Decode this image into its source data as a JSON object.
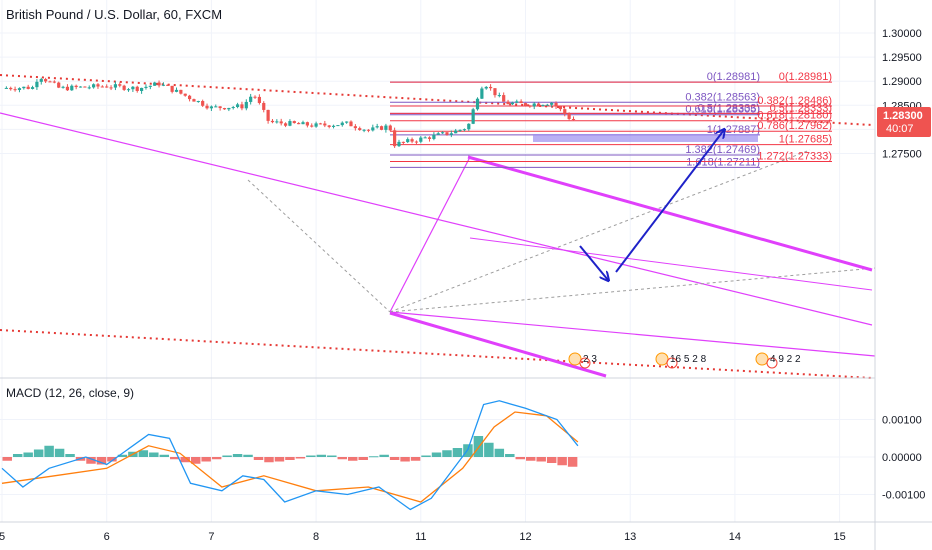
{
  "header": {
    "title": "British Pound / U.S. Dollar, 60, FXCM"
  },
  "macd": {
    "label": "MACD (12, 26, close, 9)"
  },
  "price_scale": {
    "ticks": [
      "1.30000",
      "1.29500",
      "1.29000",
      "1.28500",
      "1.28000",
      "1.27500"
    ],
    "current_price": "1.28300",
    "countdown": "40:07"
  },
  "macd_scale": {
    "ticks": [
      "0.00100",
      "0.00000",
      "-0.00100"
    ]
  },
  "time_axis": {
    "ticks": [
      "5",
      "6",
      "7",
      "8",
      "11",
      "12",
      "13",
      "14",
      "15"
    ]
  },
  "fib_left": [
    {
      "label": "0(1.28981)",
      "price": 1.28981
    },
    {
      "label": "0.382(1.28563)",
      "price": 1.28563
    },
    {
      "label": "0.5(1.28333)",
      "price": 1.28333
    },
    {
      "label": "0.618(1.28305)",
      "price": 1.28305
    },
    {
      "label": "1(1.27887)",
      "price": 1.27887
    },
    {
      "label": "1.382(1.27469)",
      "price": 1.27469
    },
    {
      "label": "1.618(1.27211)",
      "price": 1.27211
    }
  ],
  "fib_right": [
    {
      "label": "0(1.28981)",
      "price": 1.28981
    },
    {
      "label": "0.382(1.28486)",
      "price": 1.28486
    },
    {
      "label": "0.5(1.28333)",
      "price": 1.28333
    },
    {
      "label": "0.618(1.28180)",
      "price": 1.2818
    },
    {
      "label": "0.786(1.27962)",
      "price": 1.27962
    },
    {
      "label": "1(1.27685)",
      "price": 1.27685
    },
    {
      "label": "1.272(1.27333)",
      "price": 1.27333
    }
  ],
  "event_marks": {
    "left": "2 3",
    "mid": "16 5 2 8",
    "right": "4 9 2 2"
  },
  "colors": {
    "up": "#26a69a",
    "down": "#ef5350",
    "channel": "#e040fb",
    "fib_left": "#7e57c2",
    "fib_right": "#f23645",
    "arrow": "#1e22c8",
    "macd": "#2196f3",
    "signal": "#ff7f0e",
    "zone": "#9c8ff0"
  },
  "chart_data": {
    "type": "candlestick",
    "symbol": "GBPUSD",
    "interval": "60",
    "ylim": [
      1.2725,
      1.3025
    ],
    "price_path": [
      {
        "x": 0.0,
        "y": 1.2886
      },
      {
        "x": 0.3,
        "y": 1.2887
      },
      {
        "x": 0.35,
        "y": 1.2912
      },
      {
        "x": 0.55,
        "y": 1.2885
      },
      {
        "x": 1.0,
        "y": 1.289
      },
      {
        "x": 1.3,
        "y": 1.2885
      },
      {
        "x": 1.5,
        "y": 1.2895
      },
      {
        "x": 2.0,
        "y": 1.2845
      },
      {
        "x": 2.3,
        "y": 1.2848
      },
      {
        "x": 2.4,
        "y": 1.2875
      },
      {
        "x": 2.55,
        "y": 1.2815
      },
      {
        "x": 3.0,
        "y": 1.2808
      },
      {
        "x": 3.3,
        "y": 1.2812
      },
      {
        "x": 3.5,
        "y": 1.2798
      },
      {
        "x": 3.7,
        "y": 1.2807
      },
      {
        "x": 3.75,
        "y": 1.2769
      },
      {
        "x": 4.3,
        "y": 1.2794
      },
      {
        "x": 4.45,
        "y": 1.2805
      },
      {
        "x": 4.55,
        "y": 1.2875
      },
      {
        "x": 4.6,
        "y": 1.2898
      },
      {
        "x": 4.8,
        "y": 1.2855
      },
      {
        "x": 5.0,
        "y": 1.2852
      },
      {
        "x": 5.25,
        "y": 1.2856
      },
      {
        "x": 5.45,
        "y": 1.2818
      },
      {
        "x": 5.5,
        "y": 1.283
      }
    ],
    "macd_series": {
      "macd": [
        {
          "x": 0.0,
          "y": -0.0003
        },
        {
          "x": 0.2,
          "y": -0.0008
        },
        {
          "x": 0.45,
          "y": -0.0003
        },
        {
          "x": 0.8,
          "y": 0.0
        },
        {
          "x": 1.0,
          "y": -0.0002
        },
        {
          "x": 1.4,
          "y": 0.0006
        },
        {
          "x": 1.6,
          "y": 0.0005
        },
        {
          "x": 1.8,
          "y": -0.0007
        },
        {
          "x": 2.1,
          "y": -0.0009
        },
        {
          "x": 2.3,
          "y": -0.0005
        },
        {
          "x": 2.5,
          "y": -0.0006
        },
        {
          "x": 2.7,
          "y": -0.0012
        },
        {
          "x": 3.0,
          "y": -0.0009
        },
        {
          "x": 3.3,
          "y": -0.001
        },
        {
          "x": 3.6,
          "y": -0.0008
        },
        {
          "x": 3.9,
          "y": -0.0014
        },
        {
          "x": 4.1,
          "y": -0.0011
        },
        {
          "x": 4.45,
          "y": 0.0002
        },
        {
          "x": 4.6,
          "y": 0.0014
        },
        {
          "x": 4.75,
          "y": 0.0015
        },
        {
          "x": 5.0,
          "y": 0.0013
        },
        {
          "x": 5.3,
          "y": 0.001
        },
        {
          "x": 5.5,
          "y": 0.0003
        }
      ],
      "signal": [
        {
          "x": 0.0,
          "y": -0.0007
        },
        {
          "x": 0.5,
          "y": -0.0005
        },
        {
          "x": 1.0,
          "y": -0.0003
        },
        {
          "x": 1.4,
          "y": 0.0003
        },
        {
          "x": 1.7,
          "y": 0.0001
        },
        {
          "x": 2.1,
          "y": -0.0008
        },
        {
          "x": 2.5,
          "y": -0.0005
        },
        {
          "x": 3.0,
          "y": -0.0009
        },
        {
          "x": 3.5,
          "y": -0.0008
        },
        {
          "x": 4.0,
          "y": -0.0012
        },
        {
          "x": 4.4,
          "y": -0.0003
        },
        {
          "x": 4.7,
          "y": 0.0008
        },
        {
          "x": 4.9,
          "y": 0.0012
        },
        {
          "x": 5.2,
          "y": 0.0011
        },
        {
          "x": 5.5,
          "y": 0.0004
        }
      ],
      "ylim": [
        -0.0015,
        0.0017
      ]
    },
    "histogram": [
      {
        "x": 0.05,
        "v": -0.0001
      },
      {
        "x": 0.15,
        "v": 8e-05
      },
      {
        "x": 0.25,
        "v": 0.00012
      },
      {
        "x": 0.35,
        "v": 0.0002
      },
      {
        "x": 0.45,
        "v": 0.0003
      },
      {
        "x": 0.55,
        "v": 0.00022
      },
      {
        "x": 0.65,
        "v": 8e-05
      },
      {
        "x": 0.75,
        "v": -0.0001
      },
      {
        "x": 0.85,
        "v": -0.00018
      },
      {
        "x": 0.95,
        "v": -0.0002
      },
      {
        "x": 1.05,
        "v": -0.00012
      },
      {
        "x": 1.15,
        "v": 6e-05
      },
      {
        "x": 1.25,
        "v": 0.00014
      },
      {
        "x": 1.35,
        "v": 0.00018
      },
      {
        "x": 1.45,
        "v": 0.00012
      },
      {
        "x": 1.55,
        "v": 6e-05
      },
      {
        "x": 1.65,
        "v": -6e-05
      },
      {
        "x": 1.75,
        "v": -0.00014
      },
      {
        "x": 1.85,
        "v": -0.00018
      },
      {
        "x": 1.95,
        "v": -0.00012
      },
      {
        "x": 2.05,
        "v": -6e-05
      },
      {
        "x": 2.15,
        "v": 4e-05
      },
      {
        "x": 2.25,
        "v": 8e-05
      },
      {
        "x": 2.35,
        "v": 6e-05
      },
      {
        "x": 2.45,
        "v": -8e-05
      },
      {
        "x": 2.55,
        "v": -0.00014
      },
      {
        "x": 2.65,
        "v": -0.00012
      },
      {
        "x": 2.75,
        "v": -8e-05
      },
      {
        "x": 2.85,
        "v": -4e-05
      },
      {
        "x": 2.95,
        "v": 4e-05
      },
      {
        "x": 3.05,
        "v": 6e-05
      },
      {
        "x": 3.15,
        "v": 4e-05
      },
      {
        "x": 3.25,
        "v": -6e-05
      },
      {
        "x": 3.35,
        "v": -0.0001
      },
      {
        "x": 3.45,
        "v": -8e-05
      },
      {
        "x": 3.55,
        "v": 2e-05
      },
      {
        "x": 3.65,
        "v": 6e-05
      },
      {
        "x": 3.75,
        "v": -8e-05
      },
      {
        "x": 3.85,
        "v": -0.00012
      },
      {
        "x": 3.95,
        "v": -0.0001
      },
      {
        "x": 4.05,
        "v": 4e-05
      },
      {
        "x": 4.15,
        "v": 0.00012
      },
      {
        "x": 4.25,
        "v": 0.00018
      },
      {
        "x": 4.35,
        "v": 0.00024
      },
      {
        "x": 4.45,
        "v": 0.00034
      },
      {
        "x": 4.55,
        "v": 0.00056
      },
      {
        "x": 4.65,
        "v": 0.00038
      },
      {
        "x": 4.75,
        "v": 0.00022
      },
      {
        "x": 4.85,
        "v": 8e-05
      },
      {
        "x": 4.95,
        "v": -6e-05
      },
      {
        "x": 5.05,
        "v": -0.0001
      },
      {
        "x": 5.15,
        "v": -0.00012
      },
      {
        "x": 5.25,
        "v": -0.00016
      },
      {
        "x": 5.35,
        "v": -0.00022
      },
      {
        "x": 5.45,
        "v": -0.00026
      }
    ]
  }
}
